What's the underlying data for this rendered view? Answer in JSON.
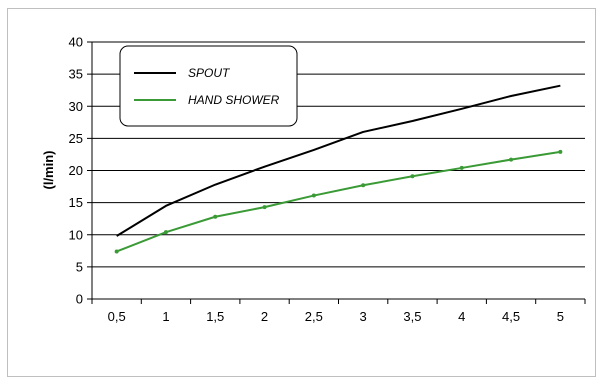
{
  "chart_data": {
    "type": "line",
    "title": "",
    "xlabel": "",
    "ylabel": "(l/min)",
    "categories": [
      "0,5",
      "1",
      "1,5",
      "2",
      "2,5",
      "3",
      "3,5",
      "4",
      "4,5",
      "5"
    ],
    "ylim": [
      0,
      40
    ],
    "yticks": [
      "0",
      "5",
      "10",
      "15",
      "20",
      "25",
      "30",
      "35",
      "40"
    ],
    "grid": true,
    "legend_position": "top-left",
    "series": [
      {
        "name": "SPOUT",
        "color": "#000000",
        "values": [
          9.8,
          14.5,
          17.8,
          20.6,
          23.2,
          26.0,
          27.7,
          29.6,
          31.6,
          33.2
        ]
      },
      {
        "name": "HAND SHOWER",
        "color": "#3a9a35",
        "values": [
          7.4,
          10.4,
          12.8,
          14.3,
          16.1,
          17.7,
          19.1,
          20.4,
          21.7,
          22.9
        ]
      }
    ]
  }
}
